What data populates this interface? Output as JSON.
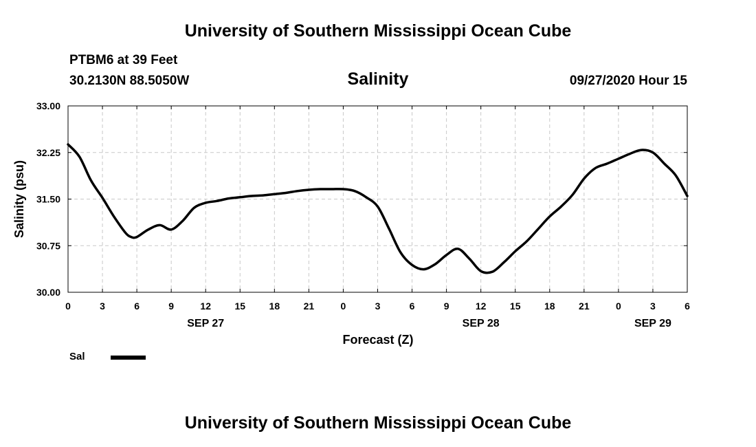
{
  "header": {
    "title": "University of Southern Mississippi Ocean Cube",
    "station": "PTBM6 at 39 Feet",
    "coords": "30.2130N 88.5050W",
    "variable": "Salinity",
    "issued": "09/27/2020 Hour 15"
  },
  "footer": {
    "title": "University of Southern Mississippi Ocean Cube"
  },
  "legend": {
    "label": "Sal",
    "color": "#000000"
  },
  "chart_data": {
    "type": "line",
    "title": "Salinity",
    "xlabel": "Forecast (Z)",
    "ylabel": "Salinity (psu)",
    "xlim": [
      0,
      54
    ],
    "ylim": [
      30.0,
      33.0
    ],
    "x_ticks": [
      0,
      3,
      6,
      9,
      12,
      15,
      18,
      21,
      24,
      27,
      30,
      33,
      36,
      39,
      42,
      45,
      48,
      51,
      54
    ],
    "x_tick_labels": [
      "0",
      "3",
      "6",
      "9",
      "12",
      "15",
      "18",
      "21",
      "0",
      "3",
      "6",
      "9",
      "12",
      "15",
      "18",
      "21",
      "0",
      "3",
      "6"
    ],
    "y_ticks": [
      30.0,
      30.75,
      31.5,
      32.25,
      33.0
    ],
    "y_tick_labels": [
      "30.00",
      "30.75",
      "31.50",
      "32.25",
      "33.00"
    ],
    "date_labels": [
      {
        "x": 12,
        "label": "SEP 27"
      },
      {
        "x": 36,
        "label": "SEP 28"
      },
      {
        "x": 51,
        "label": "SEP 29"
      }
    ],
    "grid": true,
    "series": [
      {
        "name": "Sal",
        "color": "#000000",
        "x": [
          0,
          1,
          2,
          3,
          4,
          5,
          5.5,
          6,
          7,
          8,
          9,
          10,
          11,
          12,
          13,
          14,
          15,
          16,
          17,
          18,
          19,
          20,
          21,
          22,
          23,
          24,
          25,
          26,
          27,
          28,
          29,
          30,
          31,
          32,
          33,
          34,
          35,
          36,
          37,
          38,
          39,
          40,
          41,
          42,
          43,
          44,
          45,
          46,
          47,
          48,
          49,
          50,
          51,
          52,
          53,
          54
        ],
        "y": [
          32.38,
          32.18,
          31.8,
          31.52,
          31.22,
          30.96,
          30.89,
          30.89,
          31.01,
          31.08,
          31.01,
          31.15,
          31.36,
          31.44,
          31.47,
          31.51,
          31.53,
          31.55,
          31.56,
          31.58,
          31.6,
          31.63,
          31.65,
          31.66,
          31.66,
          31.66,
          31.63,
          31.53,
          31.38,
          31.02,
          30.64,
          30.44,
          30.37,
          30.45,
          30.6,
          30.7,
          30.54,
          30.34,
          30.33,
          30.48,
          30.66,
          30.82,
          31.02,
          31.22,
          31.38,
          31.57,
          31.83,
          32.0,
          32.07,
          32.15,
          32.23,
          32.29,
          32.25,
          32.07,
          31.88,
          31.55
        ]
      }
    ]
  }
}
